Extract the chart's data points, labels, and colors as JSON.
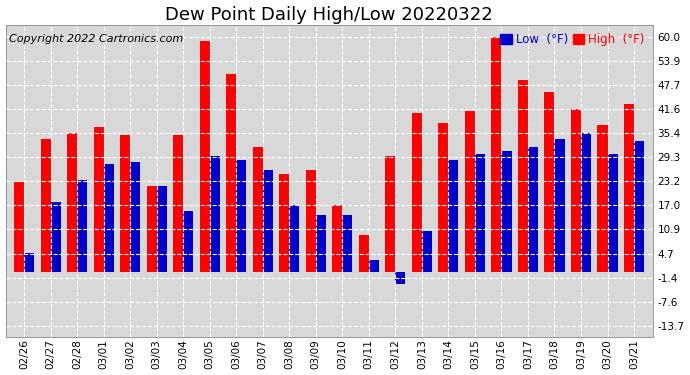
{
  "title": "Dew Point Daily High/Low 20220322",
  "copyright": "Copyright 2022 Cartronics.com",
  "yticks": [
    -13.7,
    -7.6,
    -1.4,
    4.7,
    10.9,
    17.0,
    23.2,
    29.3,
    35.4,
    41.6,
    47.7,
    53.9,
    60.0
  ],
  "ytick_labels": [
    "-13.7",
    "-7.6",
    "-1.4",
    "4.7",
    "10.9",
    "17.0",
    "23.2",
    "29.3",
    "35.4",
    "41.6",
    "47.7",
    "53.9",
    "60.0"
  ],
  "ylim": [
    -16.5,
    63.0
  ],
  "categories": [
    "02/26",
    "02/27",
    "02/28",
    "03/01",
    "03/02",
    "03/03",
    "03/04",
    "03/05",
    "03/06",
    "03/07",
    "03/08",
    "03/09",
    "03/10",
    "03/11",
    "03/12",
    "03/13",
    "03/14",
    "03/15",
    "03/16",
    "03/17",
    "03/18",
    "03/19",
    "03/20",
    "03/21"
  ],
  "high": [
    23.0,
    34.0,
    35.5,
    37.0,
    35.0,
    22.0,
    35.0,
    59.0,
    50.5,
    32.0,
    25.0,
    26.0,
    17.0,
    9.5,
    29.5,
    40.5,
    38.0,
    41.0,
    60.0,
    49.0,
    46.0,
    41.5,
    37.5,
    43.0
  ],
  "low": [
    5.0,
    18.0,
    23.5,
    27.5,
    28.0,
    22.0,
    15.5,
    29.5,
    28.5,
    26.0,
    17.0,
    14.5,
    14.5,
    3.0,
    -3.0,
    10.5,
    28.5,
    30.0,
    31.0,
    32.0,
    34.0,
    35.5,
    30.0,
    33.5
  ],
  "high_color": "#ff0000",
  "low_color": "#0000cd",
  "bg_color": "#ffffff",
  "plot_bg": "#d8d8d8",
  "grid_color": "#ffffff",
  "title_fontsize": 13,
  "copyright_fontsize": 8,
  "legend_low_label": "Low  (°F)",
  "legend_high_label": "High  (°F)"
}
